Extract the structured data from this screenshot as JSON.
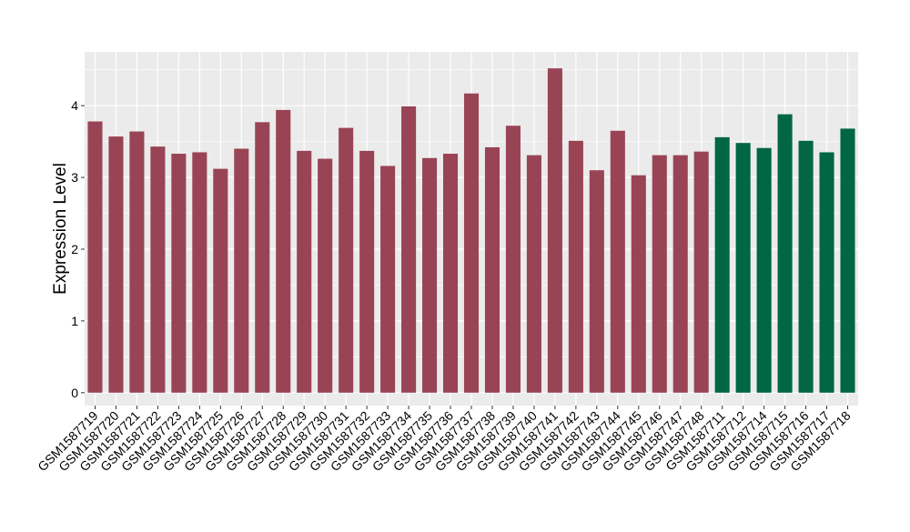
{
  "chart_data": {
    "type": "bar",
    "ylabel": "Expression Level",
    "xlabel": "",
    "title": "",
    "ylim": [
      -0.18,
      4.75
    ],
    "yticks": [
      0,
      1,
      2,
      3,
      4
    ],
    "grid": true,
    "legend": "none",
    "categories": [
      "GSM1587719",
      "GSM1587720",
      "GSM1587721",
      "GSM1587722",
      "GSM1587723",
      "GSM1587724",
      "GSM1587725",
      "GSM1587726",
      "GSM1587727",
      "GSM1587728",
      "GSM1587729",
      "GSM1587730",
      "GSM1587731",
      "GSM1587732",
      "GSM1587733",
      "GSM1587734",
      "GSM1587735",
      "GSM1587736",
      "GSM1587737",
      "GSM1587738",
      "GSM1587739",
      "GSM1587740",
      "GSM1587741",
      "GSM1587742",
      "GSM1587743",
      "GSM1587744",
      "GSM1587745",
      "GSM1587746",
      "GSM1587747",
      "GSM1587748",
      "GSM1587711",
      "GSM1587712",
      "GSM1587714",
      "GSM1587715",
      "GSM1587716",
      "GSM1587717",
      "GSM1587718"
    ],
    "values": [
      3.78,
      3.57,
      3.64,
      3.43,
      3.33,
      3.35,
      3.12,
      3.4,
      3.77,
      3.94,
      3.37,
      3.26,
      3.69,
      3.37,
      3.16,
      3.99,
      3.27,
      3.33,
      4.17,
      3.42,
      3.72,
      3.31,
      4.52,
      3.51,
      3.1,
      3.65,
      3.03,
      3.31,
      3.31,
      3.36,
      3.56,
      3.48,
      3.41,
      3.88,
      3.51,
      3.35,
      3.68
    ],
    "groups": [
      "a",
      "a",
      "a",
      "a",
      "a",
      "a",
      "a",
      "a",
      "a",
      "a",
      "a",
      "a",
      "a",
      "a",
      "a",
      "a",
      "a",
      "a",
      "a",
      "a",
      "a",
      "a",
      "a",
      "a",
      "a",
      "a",
      "a",
      "a",
      "a",
      "a",
      "b",
      "b",
      "b",
      "b",
      "b",
      "b",
      "b"
    ],
    "colors": {
      "a": "#994455",
      "b": "#006644"
    },
    "style": {
      "panel_background": "#ebebeb",
      "grid_color": "#ffffff",
      "text_color": "#000000"
    }
  }
}
